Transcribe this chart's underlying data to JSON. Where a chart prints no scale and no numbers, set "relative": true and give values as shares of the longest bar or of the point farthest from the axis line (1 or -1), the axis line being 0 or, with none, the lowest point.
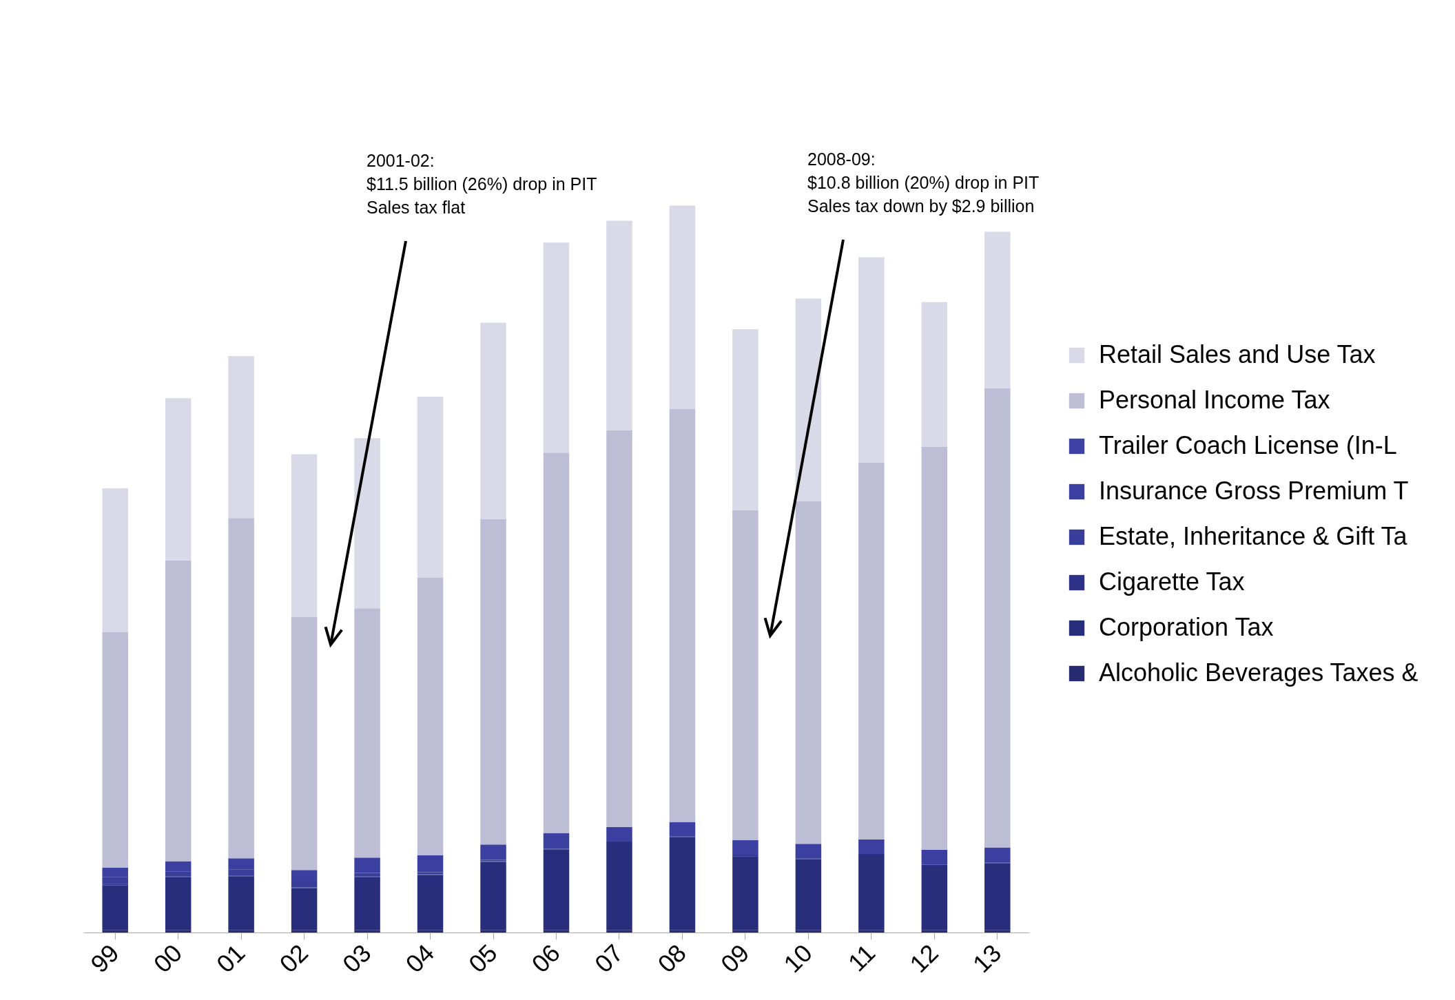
{
  "chart_data": {
    "type": "bar",
    "stacked": true,
    "relative": true,
    "categories": [
      "99",
      "00",
      "01",
      "02",
      "03",
      "04",
      "05",
      "06",
      "07",
      "08",
      "09",
      "10",
      "11",
      "12",
      "13"
    ],
    "legend": "right",
    "annotations": [
      "2001-02:\n$11.5 billion (26%) drop in PIT\nSales tax flat",
      "2008-09:\n$10.8 billion (20%) drop in PIT\nSales tax down by $2.9 billion"
    ],
    "series": [
      {
        "name": "Alcoholic Beverages Taxes &",
        "color": "#262b72",
        "values": [
          0.003,
          0.003,
          0.003,
          0.003,
          0.003,
          0.003,
          0.003,
          0.003,
          0.003,
          0.003,
          0.003,
          0.003,
          0.003,
          0.003,
          0.003
        ]
      },
      {
        "name": "Corporation Tax",
        "color": "#282d7c",
        "values": [
          0.062,
          0.073,
          0.074,
          0.058,
          0.073,
          0.076,
          0.094,
          0.111,
          0.121,
          0.128,
          0.102,
          0.098,
          0.104,
          0.089,
          0.092
        ]
      },
      {
        "name": "Cigarette Tax",
        "color": "#2d3288",
        "values": [
          0.002,
          0.001,
          0.001,
          0.001,
          0.001,
          0.001,
          0.001,
          0.001,
          0.001,
          0.001,
          0.001,
          0.001,
          0.001,
          0.001,
          0.001
        ]
      },
      {
        "name": "Estate, Inheritance & Gift Ta",
        "color": "#393e9a",
        "values": [
          0.009,
          0.007,
          0.009,
          0.009,
          0.005,
          0.003,
          0.002,
          0,
          0,
          0,
          0,
          0,
          0,
          0,
          0
        ]
      },
      {
        "name": "Insurance Gross Premium T",
        "color": "#3b40a0",
        "values": [
          0.013,
          0.014,
          0.015,
          0.015,
          0.021,
          0.023,
          0.021,
          0.022,
          0.02,
          0.02,
          0.021,
          0.02,
          0.02,
          0.021,
          0.021
        ]
      },
      {
        "name": "Trailer Coach License (In-L",
        "color": "#3d42a4",
        "values": [
          null,
          null,
          null,
          null,
          null,
          null,
          null,
          null,
          null,
          null,
          null,
          null,
          null,
          null,
          null
        ]
      },
      {
        "name": "Personal Income Tax",
        "color": "#bdbdd5",
        "values": [
          0.324,
          0.414,
          0.468,
          0.348,
          0.343,
          0.382,
          0.448,
          0.523,
          0.546,
          0.568,
          0.454,
          0.471,
          0.518,
          0.554,
          0.632
        ]
      },
      {
        "name": "Retail Sales and Use Tax",
        "color": "#d9d9e7",
        "values": [
          0.198,
          0.223,
          0.223,
          0.224,
          0.234,
          0.249,
          0.27,
          0.289,
          0.288,
          0.28,
          0.249,
          0.279,
          0.283,
          0.199,
          0.215
        ]
      }
    ]
  }
}
